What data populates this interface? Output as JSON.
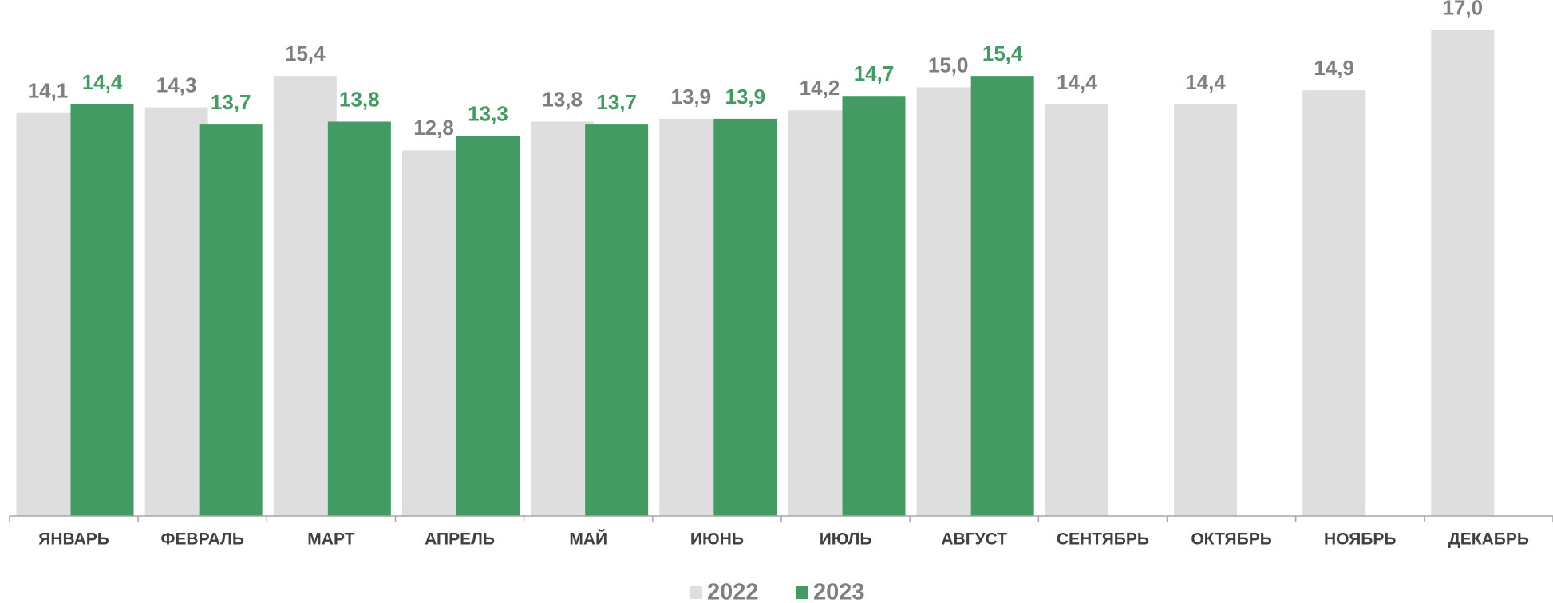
{
  "chart_data": {
    "type": "bar",
    "categories": [
      "ЯНВАРЬ",
      "ФЕВРАЛЬ",
      "МАРТ",
      "АПРЕЛЬ",
      "МАЙ",
      "ИЮНЬ",
      "ИЮЛЬ",
      "АВГУСТ",
      "СЕНТЯБРЬ",
      "ОКТЯБРЬ",
      "НОЯБРЬ",
      "ДЕКАБРЬ"
    ],
    "series": [
      {
        "name": "2022",
        "color": "#dedede",
        "label_color": "#7f7f7f",
        "values": [
          14.1,
          14.3,
          15.4,
          12.8,
          13.8,
          13.9,
          14.2,
          15.0,
          14.4,
          14.4,
          14.9,
          17.0
        ],
        "value_labels": [
          "14,1",
          "14,3",
          "15,4",
          "12,8",
          "13,8",
          "13,9",
          "14,2",
          "15,0",
          "14,4",
          "14,4",
          "14,9",
          "17,0"
        ]
      },
      {
        "name": "2023",
        "color": "#449a63",
        "label_color": "#449a63",
        "values": [
          14.4,
          13.7,
          13.8,
          13.3,
          13.7,
          13.9,
          14.7,
          15.4,
          null,
          null,
          null,
          null
        ],
        "value_labels": [
          "14,4",
          "13,7",
          "13,8",
          "13,3",
          "13,7",
          "13,9",
          "14,7",
          "15,4",
          null,
          null,
          null,
          null
        ]
      }
    ],
    "ylim": [
      0,
      18
    ],
    "legend": "bottom"
  }
}
